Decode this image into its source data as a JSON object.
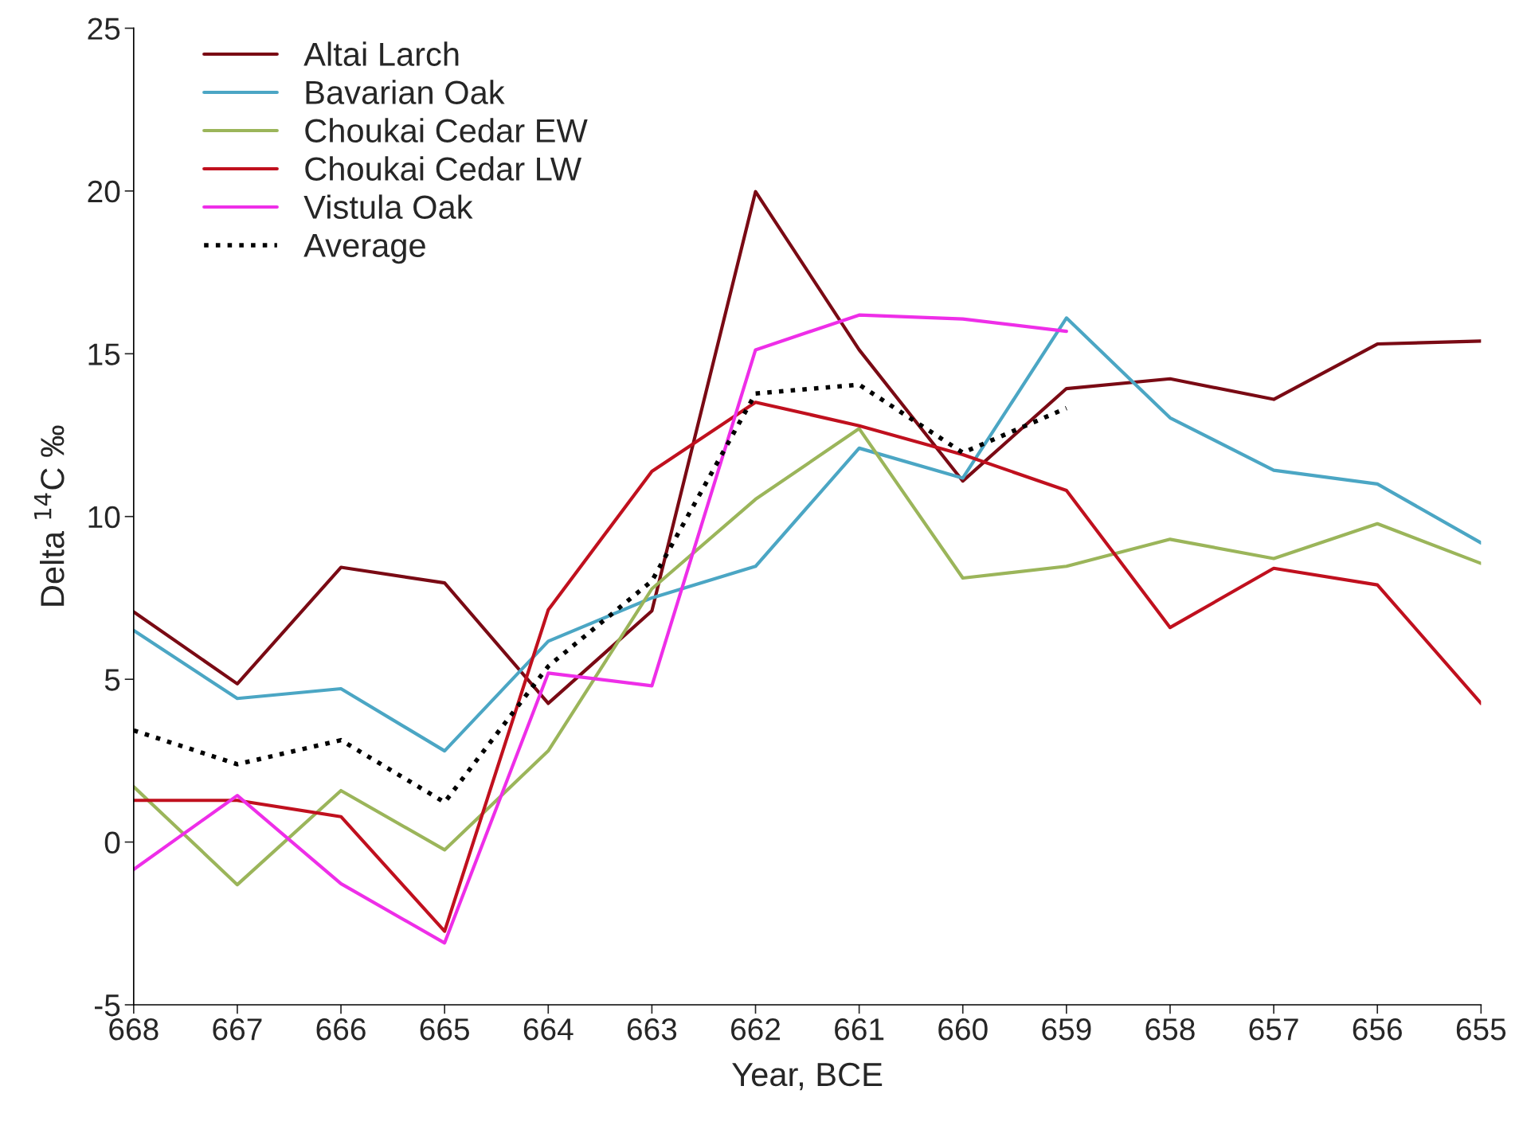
{
  "chart_data": {
    "type": "line",
    "xlabel": "Year, BCE",
    "ylabel": "Delta $^{14}$C ‰",
    "x": [
      668,
      667,
      666,
      665,
      664,
      663,
      662,
      661,
      660,
      659,
      658,
      657,
      656,
      655
    ],
    "series": [
      {
        "name": "Altai Larch",
        "color": "#7a0a14",
        "values": [
          7.07,
          4.86,
          8.44,
          7.96,
          4.26,
          7.1,
          19.98,
          15.12,
          11.09,
          13.93,
          14.23,
          13.6,
          15.3,
          15.39
        ]
      },
      {
        "name": "Bavarian Oak",
        "color": "#4ba6c4",
        "values": [
          6.5,
          4.41,
          4.71,
          2.8,
          6.17,
          7.5,
          8.47,
          12.1,
          11.18,
          16.1,
          13.03,
          11.42,
          11.0,
          9.19
        ]
      },
      {
        "name": "Choukai Cedar EW",
        "color": "#9bb55a",
        "values": [
          1.7,
          -1.31,
          1.58,
          -0.24,
          2.8,
          7.78,
          10.53,
          12.7,
          8.11,
          8.47,
          9.3,
          8.71,
          9.78,
          8.56
        ]
      },
      {
        "name": "Choukai Cedar LW",
        "color": "#c0101e",
        "values": [
          1.28,
          1.28,
          0.78,
          -2.74,
          7.13,
          11.39,
          13.51,
          12.79,
          11.9,
          10.8,
          6.59,
          8.41,
          7.9,
          4.26
        ]
      },
      {
        "name": "Vistula Oak",
        "color": "#ee2ee8",
        "values": [
          -0.84,
          1.43,
          -1.28,
          -3.1,
          5.19,
          4.8,
          15.12,
          16.19,
          16.07,
          15.69,
          null,
          null,
          null,
          null
        ]
      },
      {
        "name": "Average",
        "color": "#000000",
        "line_style": "dotted",
        "values": [
          3.43,
          2.39,
          3.13,
          1.22,
          5.4,
          8.02,
          13.78,
          14.05,
          11.96,
          13.33,
          null,
          null,
          null,
          null
        ]
      }
    ],
    "xlim": [
      668,
      655
    ],
    "xticks": [
      668,
      667,
      666,
      665,
      664,
      663,
      662,
      661,
      660,
      659,
      658,
      657,
      656,
      655
    ],
    "ylim": [
      -5,
      25
    ],
    "yticks": [
      -5,
      0,
      5,
      10,
      15,
      20,
      25
    ],
    "grid": false,
    "legend": "top left",
    "marker": "none",
    "line_style": "solid"
  }
}
